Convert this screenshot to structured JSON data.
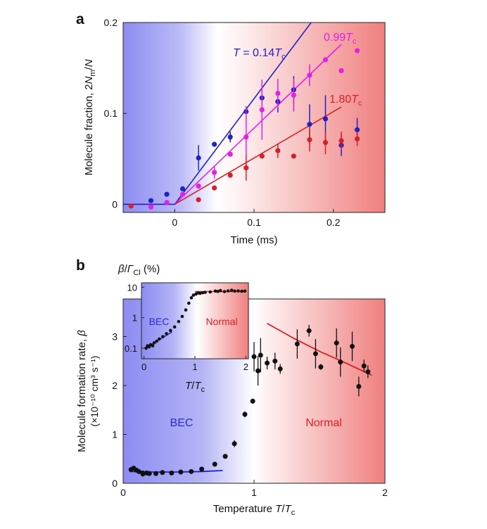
{
  "colors": {
    "blue": "#1f22c4",
    "magenta": "#e51ee5",
    "red": "#d81f26",
    "black": "#111111",
    "bg_blue": "#8c8cf2",
    "bg_red": "#f07f7f"
  },
  "chart_data": [
    {
      "type": "scatter",
      "panel_label": "a",
      "xlabel": "Time (ms)",
      "ylabel_parts": [
        "Molecule fraction, 2",
        "N",
        "m",
        "/",
        "N"
      ],
      "xlim": [
        -0.065,
        0.265
      ],
      "ylim": [
        -0.009,
        0.2
      ],
      "xticks": [
        0,
        0.1,
        0.2
      ],
      "xtick_labels": [
        "0",
        "0.1",
        "0.2"
      ],
      "yticks": [
        0,
        0.1,
        0.2
      ],
      "ytick_labels": [
        "0",
        "0.1",
        "0.2"
      ],
      "background": "horizontal gradient blue (left) to white to red (right)",
      "series": [
        {
          "name": "T = 0.14Tc",
          "label_parts": [
            "T",
            " = 0.14",
            "T",
            "c"
          ],
          "color_key": "blue",
          "points": [
            {
              "x": -0.03,
              "y": 0.004
            },
            {
              "x": -0.01,
              "y": 0.011
            },
            {
              "x": 0.01,
              "y": 0.017
            },
            {
              "x": 0.03,
              "y": 0.051,
              "err": 0.014
            },
            {
              "x": 0.05,
              "y": 0.066
            },
            {
              "x": 0.07,
              "y": 0.074,
              "err": 0.006
            },
            {
              "x": 0.09,
              "y": 0.102
            },
            {
              "x": 0.11,
              "y": 0.117,
              "err": 0.012
            },
            {
              "x": 0.13,
              "y": 0.113,
              "err": 0.012
            },
            {
              "x": 0.15,
              "y": 0.126,
              "err": 0.015
            },
            {
              "x": 0.17,
              "y": 0.088,
              "err": 0.022
            },
            {
              "x": 0.19,
              "y": 0.094,
              "err": 0.026
            },
            {
              "x": 0.21,
              "y": 0.065,
              "err": 0.012
            },
            {
              "x": 0.23,
              "y": 0.082,
              "err": 0.013
            }
          ],
          "fit": [
            {
              "x": -0.065,
              "y": 0
            },
            {
              "x": 0,
              "y": 0
            },
            {
              "x": 0.172,
              "y": 0.2
            }
          ]
        },
        {
          "name": "0.99Tc",
          "label_parts": [
            "",
            "0.99",
            "T",
            "c"
          ],
          "color_key": "magenta",
          "points": [
            {
              "x": -0.03,
              "y": -0.003
            },
            {
              "x": -0.01,
              "y": 0.002
            },
            {
              "x": 0.01,
              "y": 0.011
            },
            {
              "x": 0.03,
              "y": 0.02
            },
            {
              "x": 0.05,
              "y": 0.035,
              "err": 0.007
            },
            {
              "x": 0.07,
              "y": 0.055
            },
            {
              "x": 0.09,
              "y": 0.074,
              "err": 0.034
            },
            {
              "x": 0.11,
              "y": 0.104,
              "err": 0.033
            },
            {
              "x": 0.13,
              "y": 0.122,
              "err": 0.016
            },
            {
              "x": 0.15,
              "y": 0.12,
              "err": 0.018
            },
            {
              "x": 0.17,
              "y": 0.142,
              "err": 0.012
            },
            {
              "x": 0.19,
              "y": 0.159
            },
            {
              "x": 0.21,
              "y": 0.147
            },
            {
              "x": 0.23,
              "y": 0.169
            }
          ],
          "fit": [
            {
              "x": 0,
              "y": 0
            },
            {
              "x": 0.21,
              "y": 0.176
            }
          ]
        },
        {
          "name": "1.80Tc",
          "label_parts": [
            "",
            "1.80",
            "T",
            "c"
          ],
          "color_key": "red",
          "points": [
            {
              "x": -0.055,
              "y": -0.002
            },
            {
              "x": 0.03,
              "y": 0.005
            },
            {
              "x": 0.05,
              "y": 0.018
            },
            {
              "x": 0.07,
              "y": 0.032
            },
            {
              "x": 0.09,
              "y": 0.04,
              "err": 0.014
            },
            {
              "x": 0.11,
              "y": 0.053
            },
            {
              "x": 0.13,
              "y": 0.059,
              "err": 0.008
            },
            {
              "x": 0.15,
              "y": 0.053
            },
            {
              "x": 0.17,
              "y": 0.071,
              "err": 0.013
            },
            {
              "x": 0.19,
              "y": 0.068,
              "err": 0.013
            },
            {
              "x": 0.21,
              "y": 0.07,
              "err": 0.01
            },
            {
              "x": 0.23,
              "y": 0.072,
              "err": 0.008
            }
          ],
          "fit": [
            {
              "x": 0,
              "y": 0
            },
            {
              "x": 0.21,
              "y": 0.107
            }
          ]
        }
      ]
    },
    {
      "type": "scatter",
      "panel_label": "b",
      "xlabel_parts": [
        "Temperature ",
        "T",
        "/",
        "T",
        "c"
      ],
      "ylabel_line1_parts": [
        "Molecule formation rate, ",
        "β"
      ],
      "ylabel_line2": "(×10⁻¹⁰ cm³ s⁻¹)",
      "xlim": [
        0,
        2
      ],
      "ylim": [
        0,
        3.77
      ],
      "xticks": [
        0,
        1,
        2
      ],
      "xtick_labels": [
        "0",
        "1",
        "2"
      ],
      "yticks": [
        0,
        1,
        2,
        3
      ],
      "ytick_labels": [
        "0",
        "1",
        "2",
        "3"
      ],
      "region_labels": {
        "left": "BEC",
        "right": "Normal"
      },
      "series": [
        {
          "name": "data",
          "color_key": "black",
          "points": [
            {
              "x": 0.06,
              "y": 0.28
            },
            {
              "x": 0.08,
              "y": 0.31
            },
            {
              "x": 0.1,
              "y": 0.27
            },
            {
              "x": 0.12,
              "y": 0.24
            },
            {
              "x": 0.15,
              "y": 0.21
            },
            {
              "x": 0.15,
              "y": 0.19
            },
            {
              "x": 0.18,
              "y": 0.21
            },
            {
              "x": 0.2,
              "y": 0.2
            },
            {
              "x": 0.25,
              "y": 0.2
            },
            {
              "x": 0.3,
              "y": 0.22
            },
            {
              "x": 0.37,
              "y": 0.21
            },
            {
              "x": 0.44,
              "y": 0.23
            },
            {
              "x": 0.52,
              "y": 0.24
            },
            {
              "x": 0.6,
              "y": 0.29
            },
            {
              "x": 0.7,
              "y": 0.39
            },
            {
              "x": 0.78,
              "y": 0.55
            },
            {
              "x": 0.85,
              "y": 0.81,
              "err": 0.07
            },
            {
              "x": 0.93,
              "y": 1.41,
              "err": 0.06
            },
            {
              "x": 0.99,
              "y": 1.68,
              "err": 0.05
            },
            {
              "x": 1.0,
              "y": 2.59,
              "err": 0.3
            },
            {
              "x": 1.03,
              "y": 2.3,
              "err": 0.3
            },
            {
              "x": 1.05,
              "y": 2.62,
              "err": 0.35
            },
            {
              "x": 1.1,
              "y": 2.46,
              "err": 0.13
            },
            {
              "x": 1.16,
              "y": 2.5,
              "err": 0.17
            },
            {
              "x": 1.2,
              "y": 2.34,
              "err": 0.1
            },
            {
              "x": 1.33,
              "y": 2.85,
              "err": 0.3
            },
            {
              "x": 1.42,
              "y": 3.12,
              "err": 0.12
            },
            {
              "x": 1.47,
              "y": 2.65,
              "err": 0.3
            },
            {
              "x": 1.51,
              "y": 2.38,
              "err": 0.06
            },
            {
              "x": 1.63,
              "y": 2.87,
              "err": 0.3
            },
            {
              "x": 1.66,
              "y": 2.48,
              "err": 0.3
            },
            {
              "x": 1.75,
              "y": 2.8,
              "err": 0.3
            },
            {
              "x": 1.8,
              "y": 1.98,
              "err": 0.2
            },
            {
              "x": 1.84,
              "y": 2.4,
              "err": 0.13
            },
            {
              "x": 1.87,
              "y": 2.28,
              "err": 0.13
            }
          ]
        },
        {
          "name": "BEC fit",
          "color_key": "blue",
          "line": [
            {
              "x": 0.05,
              "y": 0.24
            },
            {
              "x": 0.2,
              "y": 0.23
            },
            {
              "x": 0.4,
              "y": 0.23
            },
            {
              "x": 0.6,
              "y": 0.24
            },
            {
              "x": 0.76,
              "y": 0.26
            }
          ]
        },
        {
          "name": "Normal fit",
          "color_key": "red",
          "line": [
            {
              "x": 1.1,
              "y": 3.27
            },
            {
              "x": 1.3,
              "y": 2.97
            },
            {
              "x": 1.5,
              "y": 2.7
            },
            {
              "x": 1.7,
              "y": 2.46
            },
            {
              "x": 1.9,
              "y": 2.21
            }
          ]
        }
      ],
      "inset": {
        "type": "scatter",
        "xlabel_parts": [
          "T",
          "/",
          "T",
          "c"
        ],
        "ylabel_parts": [
          "β",
          "/",
          "Γ",
          "Cl",
          " (%)"
        ],
        "yscale": "log",
        "xlim": [
          -0.05,
          2.05
        ],
        "ylim": [
          0.045,
          14
        ],
        "xticks": [
          0,
          1,
          2
        ],
        "xtick_labels": [
          "0",
          "1",
          "2"
        ],
        "yticks": [
          0.1,
          1,
          10
        ],
        "ytick_labels": [
          "0.1",
          "1",
          "10"
        ],
        "region_labels": {
          "left": "BEC",
          "right": "Normal"
        },
        "points": [
          {
            "x": 0.04,
            "y": 0.1
          },
          {
            "x": 0.07,
            "y": 0.12
          },
          {
            "x": 0.1,
            "y": 0.11
          },
          {
            "x": 0.13,
            "y": 0.13
          },
          {
            "x": 0.17,
            "y": 0.12
          },
          {
            "x": 0.2,
            "y": 0.15
          },
          {
            "x": 0.25,
            "y": 0.17
          },
          {
            "x": 0.3,
            "y": 0.2
          },
          {
            "x": 0.37,
            "y": 0.24
          },
          {
            "x": 0.44,
            "y": 0.3
          },
          {
            "x": 0.52,
            "y": 0.38
          },
          {
            "x": 0.6,
            "y": 0.5
          },
          {
            "x": 0.68,
            "y": 0.75
          },
          {
            "x": 0.75,
            "y": 1.1
          },
          {
            "x": 0.82,
            "y": 1.8
          },
          {
            "x": 0.88,
            "y": 3.0
          },
          {
            "x": 0.93,
            "y": 4.5
          },
          {
            "x": 0.97,
            "y": 5.5
          },
          {
            "x": 1.02,
            "y": 6.0
          },
          {
            "x": 1.06,
            "y": 6.5
          },
          {
            "x": 1.1,
            "y": 6.3
          },
          {
            "x": 1.15,
            "y": 6.6
          },
          {
            "x": 1.2,
            "y": 6.8
          },
          {
            "x": 1.3,
            "y": 7.0
          },
          {
            "x": 1.4,
            "y": 7.5
          },
          {
            "x": 1.45,
            "y": 7.3
          },
          {
            "x": 1.5,
            "y": 7.8
          },
          {
            "x": 1.58,
            "y": 7.2
          },
          {
            "x": 1.65,
            "y": 7.6
          },
          {
            "x": 1.72,
            "y": 8.0
          },
          {
            "x": 1.78,
            "y": 7.5
          },
          {
            "x": 1.85,
            "y": 7.6
          },
          {
            "x": 1.92,
            "y": 7.4
          },
          {
            "x": 1.98,
            "y": 7.5
          }
        ],
        "bec_fit": [
          {
            "x": 0.02,
            "y": 0.1
          },
          {
            "x": 0.55,
            "y": 0.34
          }
        ],
        "normal_fit": [
          {
            "x": 1.0,
            "y": 7.2
          },
          {
            "x": 2.0,
            "y": 7.2
          }
        ]
      }
    }
  ]
}
